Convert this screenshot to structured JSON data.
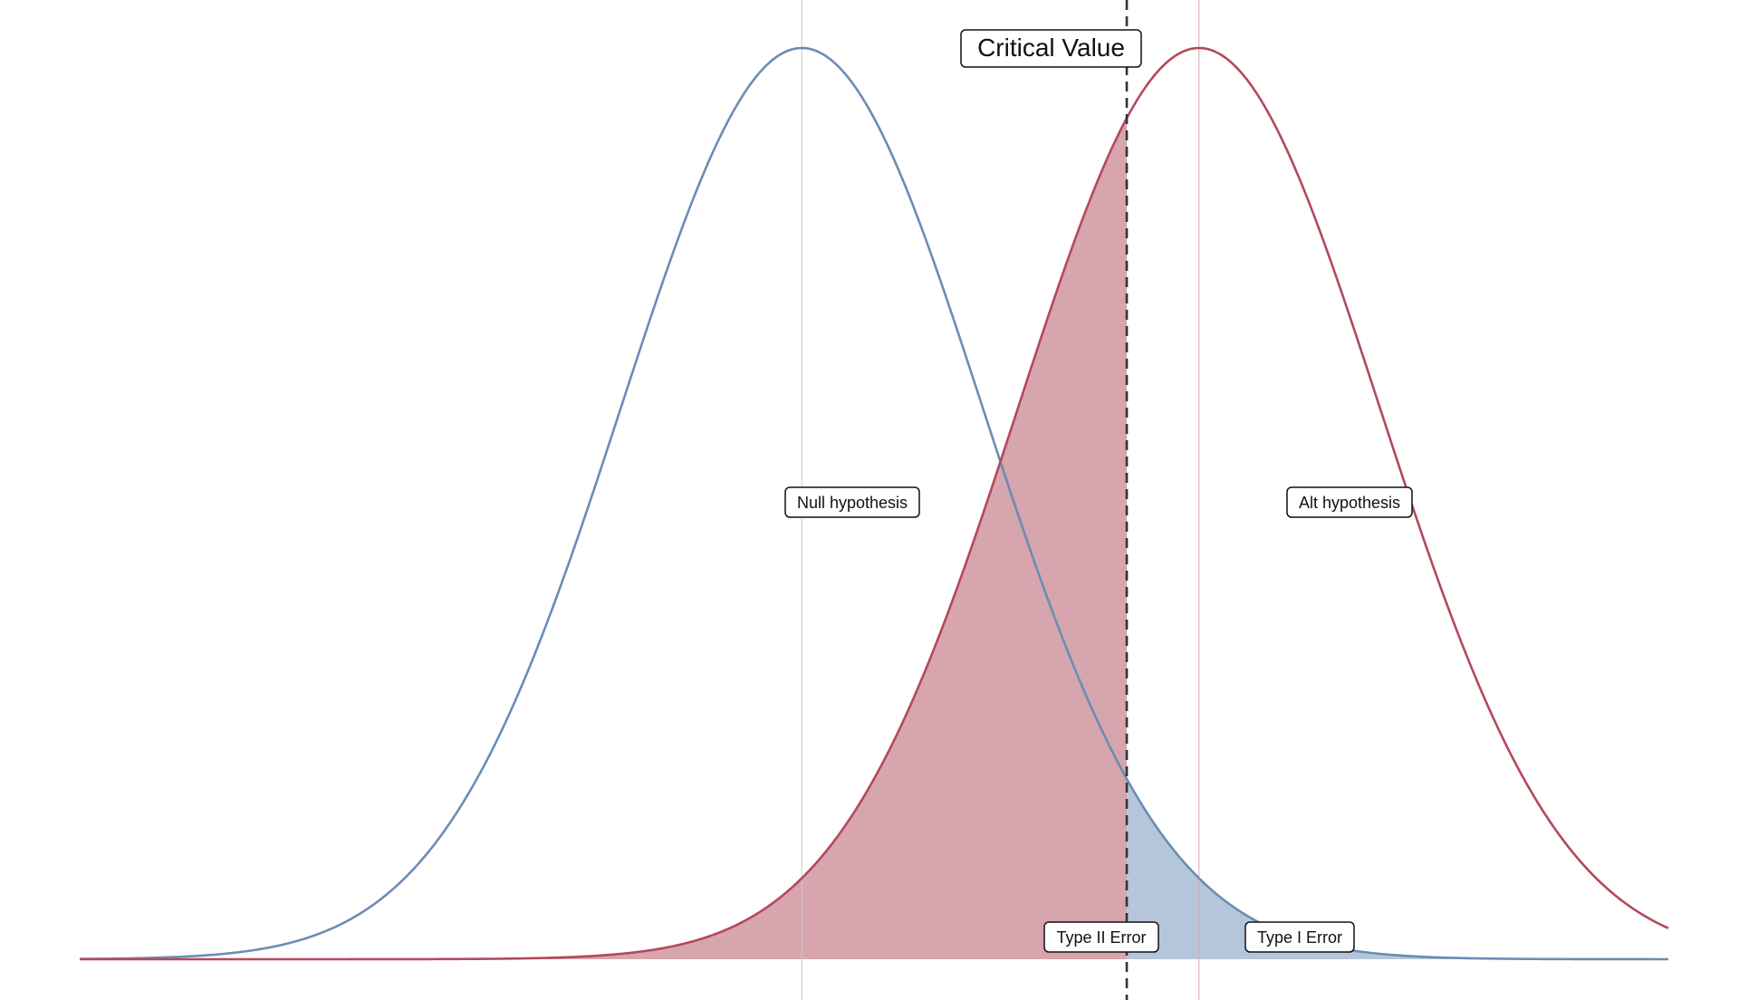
{
  "chart_data": {
    "type": "area",
    "title": "",
    "xlabel": "",
    "ylabel": "",
    "grid": false,
    "legend": "none",
    "xlim": [
      -4,
      4.8
    ],
    "ylim": [
      0,
      0.4
    ],
    "critical_value": 1.8,
    "series": [
      {
        "name": "Null hypothesis",
        "mean": 0,
        "sd": 1,
        "color": "#6a8db5"
      },
      {
        "name": "Alt hypothesis",
        "mean": 2.2,
        "sd": 1,
        "color": "#b5485c"
      }
    ],
    "regions": [
      {
        "name": "Type II Error",
        "of_series": "Alt hypothesis",
        "side": "left_of_critical",
        "fill": "#d7a5ad"
      },
      {
        "name": "Type I Error",
        "of_series": "Null hypothesis",
        "side": "right_of_critical",
        "fill": "#b6c6da"
      }
    ],
    "annotations": {
      "critical": "Critical Value",
      "null_label": "Null hypothesis",
      "alt_label": "Alt hypothesis",
      "type2": "Type II Error",
      "type1": "Type I Error"
    }
  }
}
